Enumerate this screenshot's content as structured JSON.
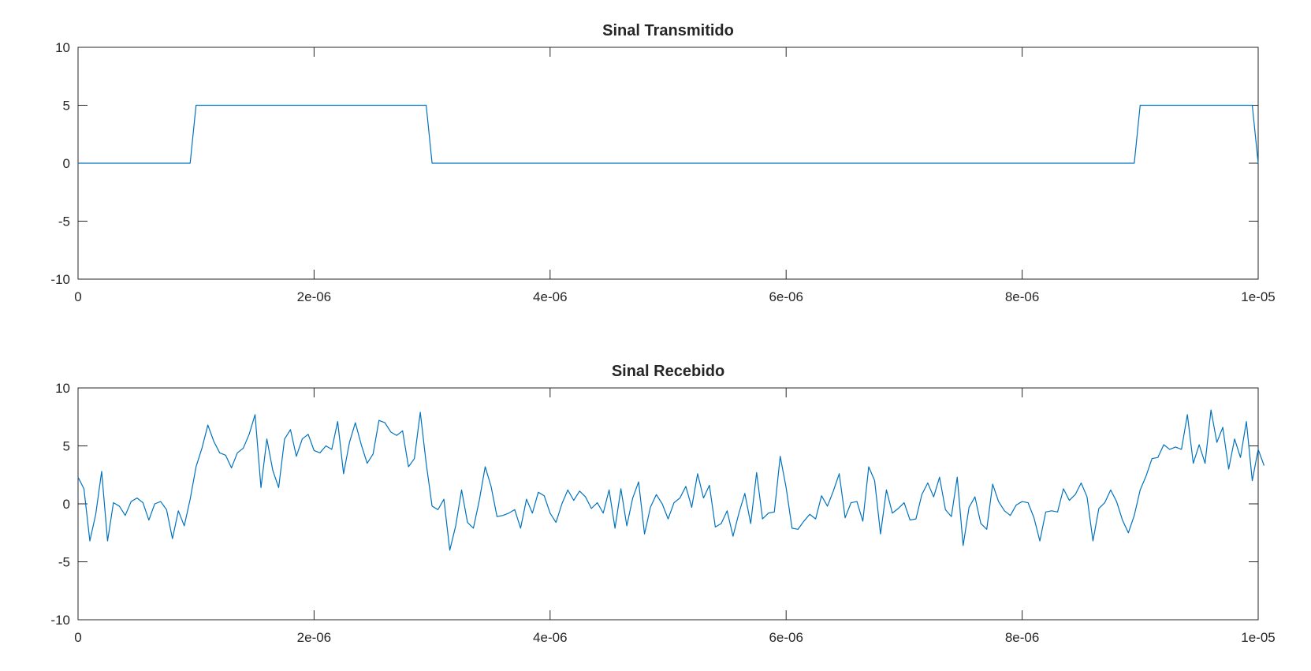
{
  "chart_data": [
    {
      "type": "line",
      "title": "Sinal Transmitido",
      "xlabel": "",
      "ylabel": "",
      "xlim": [
        0,
        1e-05
      ],
      "ylim": [
        -10,
        10
      ],
      "xticks": [
        0,
        2e-06,
        4e-06,
        6e-06,
        8e-06,
        1e-05
      ],
      "xtick_labels": [
        "0",
        "2e-06",
        "4e-06",
        "6e-06",
        "8e-06",
        "1e-05"
      ],
      "yticks": [
        -10,
        -5,
        0,
        5,
        10
      ],
      "ytick_labels": [
        "-10",
        "-5",
        "0",
        "5",
        "10"
      ],
      "grid": false,
      "color": "#0072bd",
      "series": [
        {
          "x": [
            0,
            9.5e-07,
            1e-06,
            2.95e-06,
            3e-06,
            8.95e-06,
            9e-06,
            9.95e-06,
            1e-05
          ],
          "y": [
            0,
            0,
            5,
            5,
            0,
            0,
            5,
            5,
            0
          ]
        }
      ]
    },
    {
      "type": "line",
      "title": "Sinal Recebido",
      "xlabel": "",
      "ylabel": "",
      "xlim": [
        0,
        1e-05
      ],
      "ylim": [
        -10,
        10
      ],
      "xticks": [
        0,
        2e-06,
        4e-06,
        6e-06,
        8e-06,
        1e-05
      ],
      "xtick_labels": [
        "0",
        "2e-06",
        "4e-06",
        "6e-06",
        "8e-06",
        "1e-05"
      ],
      "yticks": [
        -10,
        -5,
        0,
        5,
        10
      ],
      "ytick_labels": [
        "-10",
        "-5",
        "0",
        "5",
        "10"
      ],
      "grid": false,
      "color": "#0072bd",
      "series": [
        {
          "x_start": 0,
          "x_step": 5e-08,
          "y": [
            2.3,
            1.3,
            -3.2,
            -0.9,
            2.8,
            -3.2,
            0.1,
            -0.2,
            -1.0,
            0.2,
            0.5,
            0.1,
            -1.4,
            0.0,
            0.2,
            -0.5,
            -3.0,
            -0.6,
            -1.9,
            0.4,
            3.2,
            4.8,
            6.8,
            5.4,
            4.4,
            4.2,
            3.1,
            4.4,
            4.8,
            6.0,
            7.7,
            1.4,
            5.6,
            2.9,
            1.4,
            5.6,
            6.4,
            4.1,
            5.6,
            6.0,
            4.6,
            4.4,
            5.0,
            4.7,
            7.1,
            2.6,
            5.3,
            7.0,
            5.1,
            3.5,
            4.3,
            7.2,
            7.0,
            6.2,
            5.9,
            6.3,
            3.2,
            3.9,
            7.9,
            3.5,
            -0.2,
            -0.5,
            0.4,
            -4.0,
            -1.9,
            1.2,
            -1.6,
            -2.1,
            0.3,
            3.2,
            1.5,
            -1.1,
            -1.0,
            -0.8,
            -0.5,
            -2.1,
            0.4,
            -0.8,
            1.0,
            0.7,
            -0.8,
            -1.6,
            0.0,
            1.2,
            0.3,
            1.1,
            0.6,
            -0.4,
            0.1,
            -0.8,
            1.2,
            -2.1,
            1.3,
            -1.9,
            0.5,
            1.9,
            -2.6,
            -0.3,
            0.8,
            0.0,
            -1.3,
            0.1,
            0.5,
            1.5,
            -0.3,
            2.6,
            0.5,
            1.6,
            -2.0,
            -1.7,
            -0.6,
            -2.8,
            -0.8,
            0.9,
            -1.7,
            2.7,
            -1.3,
            -0.8,
            -0.7,
            4.1,
            1.4,
            -2.1,
            -2.2,
            -1.5,
            -0.9,
            -1.3,
            0.7,
            -0.2,
            1.1,
            2.6,
            -1.2,
            0.1,
            0.2,
            -1.5,
            3.2,
            2.0,
            -2.6,
            1.2,
            -0.8,
            -0.4,
            0.1,
            -1.4,
            -1.3,
            0.8,
            1.8,
            0.6,
            2.3,
            -0.5,
            -1.1,
            2.3,
            -3.6,
            -0.3,
            0.6,
            -1.7,
            -2.2,
            1.7,
            0.2,
            -0.6,
            -1.0,
            -0.1,
            0.2,
            0.1,
            -1.2,
            -3.2,
            -0.7,
            -0.6,
            -0.7,
            1.3,
            0.3,
            0.8,
            1.8,
            0.6,
            -3.2,
            -0.4,
            0.1,
            1.2,
            0.2,
            -1.4,
            -2.5,
            -1.0,
            1.2,
            2.4,
            3.9,
            4.0,
            5.1,
            4.7,
            4.9,
            4.7,
            7.7,
            3.5,
            5.1,
            3.5,
            8.1,
            5.3,
            6.6,
            3.0,
            5.6,
            4.0,
            7.1,
            2.0,
            4.7,
            3.3
          ]
        }
      ]
    }
  ]
}
